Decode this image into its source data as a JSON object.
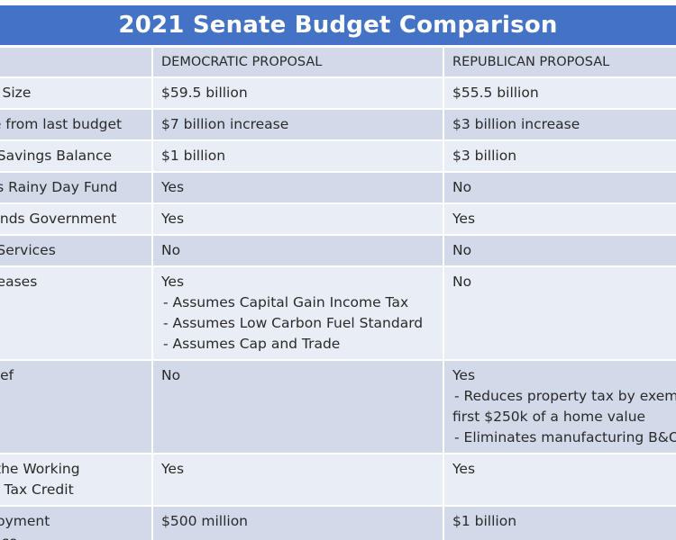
{
  "title": "2021 Senate Budget Comparison",
  "columns": [
    "",
    "DEMOCRATIC PROPOSAL",
    "REPUBLICAN PROPOSAL"
  ],
  "rows": [
    {
      "label": [
        "et Size"
      ],
      "dem": [
        "$59.5 billion"
      ],
      "rep": [
        "$55.5 billion"
      ]
    },
    {
      "label": [
        "ge from last budget"
      ],
      "dem": [
        "$7 billion increase"
      ],
      "rep": [
        "$3 billion increase"
      ]
    },
    {
      "label": [
        "g Savings Balance"
      ],
      "dem": [
        "$1 billion"
      ],
      "rep": [
        "$3 billion"
      ]
    },
    {
      "label": [
        "ids Rainy Day Fund"
      ],
      "dem": [
        "Yes"
      ],
      "rep": [
        "No"
      ]
    },
    {
      "label": [
        "Funds Government"
      ],
      "dem": [
        "Yes"
      ],
      "rep": [
        "Yes"
      ]
    },
    {
      "label": [
        "o Services"
      ],
      "dem": [
        "No"
      ],
      "rep": [
        "No"
      ]
    },
    {
      "label": [
        "creases"
      ],
      "dem": [
        "Yes",
        "- Assumes Capital Gain Income Tax",
        "- Assumes Low Carbon Fuel Standard",
        "- Assumes Cap and Trade"
      ],
      "rep": [
        "No"
      ]
    },
    {
      "label": [
        "elief"
      ],
      "dem": [
        "No"
      ],
      "rep": [
        "Yes",
        "- Reduces property tax by exem",
        "first $250k of a home value",
        "- Eliminates manufacturing B&O"
      ]
    },
    {
      "label": [
        "s the Working",
        "es Tax Credit"
      ],
      "dem": [
        "Yes"
      ],
      "rep": [
        "Yes"
      ]
    },
    {
      "label": [
        "ployment",
        "ance"
      ],
      "dem": [
        "$500 million"
      ],
      "rep": [
        "$1 billion"
      ]
    }
  ]
}
